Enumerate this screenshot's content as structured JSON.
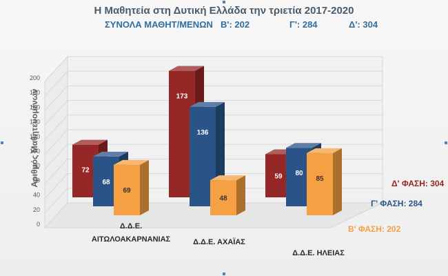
{
  "chart_data": {
    "type": "bar",
    "title": "Η Μαθητεία στη Δυτική Ελλάδα την τριετία 2017-2020",
    "subtitle": {
      "label": "ΣΥΝΟΛΑ ΜΑΘΗΤ/ΜΕΝΩΝ",
      "totals": [
        "Β': 202",
        "Γ': 284",
        "Δ': 304"
      ]
    },
    "ylabel": "Αριθμός Μαθητευομένων",
    "xlabel": "",
    "ylim": [
      0,
      200
    ],
    "yticks": [
      0,
      20,
      40,
      60,
      80,
      100,
      120,
      140,
      160,
      180,
      200
    ],
    "grid": true,
    "categories": [
      [
        "Δ.Δ.Ε.",
        "ΑΙΤΩΛΟΑΚΑΡΝΑΝΙΑΣ"
      ],
      [
        "Δ.Δ.Ε. ΑΧΑΪΑΣ"
      ],
      [
        "Δ.Δ.Ε. ΗΛΕΙΑΣ"
      ]
    ],
    "series": [
      {
        "name": "Β' ΦΑΣΗ: 202",
        "color": "#f5a042",
        "values": [
          69,
          48,
          85
        ]
      },
      {
        "name": "Γ' ΦΑΣΗ: 284",
        "color": "#2a5488",
        "values": [
          68,
          136,
          80
        ]
      },
      {
        "name": "Δ' ΦΑΣΗ: 304",
        "color": "#952727",
        "values": [
          72,
          173,
          59
        ]
      }
    ]
  }
}
